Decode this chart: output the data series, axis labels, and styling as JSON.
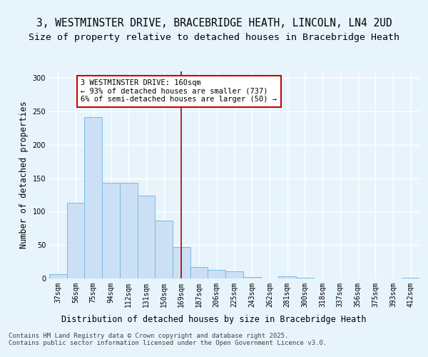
{
  "title_line1": "3, WESTMINSTER DRIVE, BRACEBRIDGE HEATH, LINCOLN, LN4 2UD",
  "title_line2": "Size of property relative to detached houses in Bracebridge Heath",
  "xlabel": "Distribution of detached houses by size in Bracebridge Heath",
  "ylabel": "Number of detached properties",
  "categories": [
    "37sqm",
    "56sqm",
    "75sqm",
    "94sqm",
    "112sqm",
    "131sqm",
    "150sqm",
    "169sqm",
    "187sqm",
    "206sqm",
    "225sqm",
    "243sqm",
    "262sqm",
    "281sqm",
    "300sqm",
    "318sqm",
    "337sqm",
    "356sqm",
    "375sqm",
    "393sqm",
    "412sqm"
  ],
  "values": [
    6,
    113,
    242,
    143,
    143,
    124,
    87,
    47,
    17,
    13,
    11,
    2,
    0,
    3,
    1,
    0,
    0,
    0,
    0,
    0,
    1
  ],
  "bar_color": "#cce0f5",
  "bar_edge_color": "#7ab8e0",
  "vline_x": 7,
  "vline_color": "#aa0000",
  "annotation_box_text": "3 WESTMINSTER DRIVE: 160sqm\n← 93% of detached houses are smaller (737)\n6% of semi-detached houses are larger (50) →",
  "annotation_box_color": "#cc0000",
  "footer_text": "Contains HM Land Registry data © Crown copyright and database right 2025.\nContains public sector information licensed under the Open Government Licence v3.0.",
  "ylim": [
    0,
    310
  ],
  "yticks": [
    0,
    50,
    100,
    150,
    200,
    250,
    300
  ],
  "background_color": "#e8f4fc",
  "plot_background_color": "#e8f4fc",
  "grid_color": "#ffffff",
  "title_fontsize": 10.5,
  "subtitle_fontsize": 9.5,
  "axis_label_fontsize": 8.5,
  "tick_fontsize": 7,
  "footer_fontsize": 6.5,
  "annotation_fontsize": 7.5
}
